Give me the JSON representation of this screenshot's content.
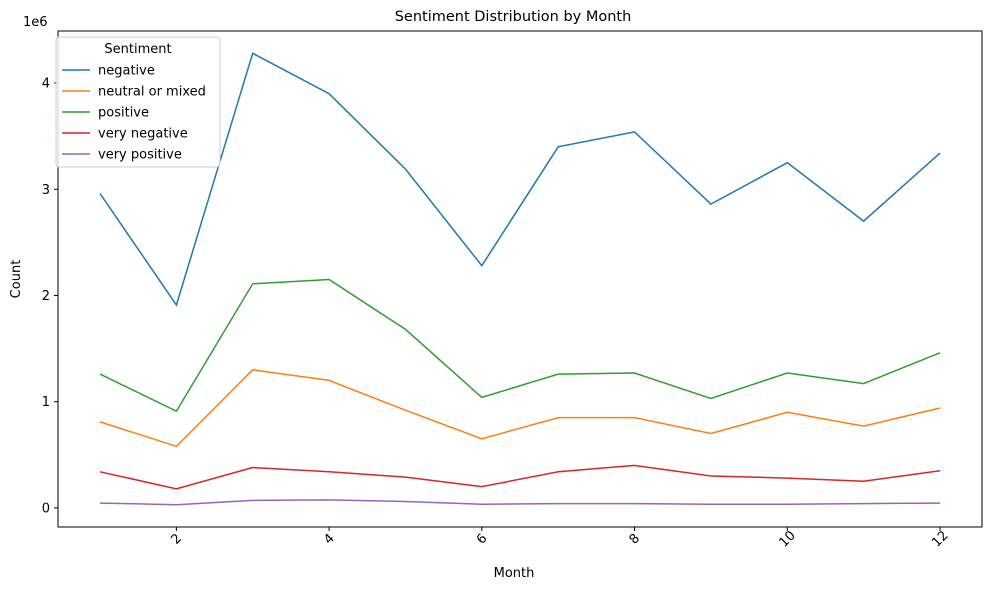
{
  "chart_data": {
    "type": "line",
    "title": "Sentiment Distribution by Month",
    "xlabel": "Month",
    "ylabel": "Count",
    "y_scale_label": "1e6",
    "x": [
      1,
      2,
      3,
      4,
      5,
      6,
      7,
      8,
      9,
      10,
      11,
      12
    ],
    "x_ticks": [
      2,
      4,
      6,
      8,
      10,
      12
    ],
    "y_ticks": [
      0,
      1,
      2,
      3,
      4
    ],
    "xlim": [
      0.45,
      12.55
    ],
    "ylim": [
      -0.18,
      4.49
    ],
    "y_unit_multiplier": 1000000,
    "grid": false,
    "legend": {
      "title": "Sentiment",
      "placement": "top-left"
    },
    "series": [
      {
        "name": "negative",
        "color": "#1f77b4",
        "values": [
          2.96,
          1.91,
          4.28,
          3.9,
          3.19,
          2.28,
          3.4,
          3.54,
          2.86,
          3.25,
          2.7,
          3.34
        ]
      },
      {
        "name": "neutral or mixed",
        "color": "#ff7f0e",
        "values": [
          0.81,
          0.58,
          1.3,
          1.2,
          0.92,
          0.65,
          0.85,
          0.85,
          0.7,
          0.9,
          0.77,
          0.94
        ]
      },
      {
        "name": "positive",
        "color": "#2ca02c",
        "values": [
          1.26,
          0.91,
          2.11,
          2.15,
          1.68,
          1.04,
          1.26,
          1.27,
          1.03,
          1.27,
          1.17,
          1.46
        ]
      },
      {
        "name": "very negative",
        "color": "#d62728",
        "values": [
          0.34,
          0.18,
          0.38,
          0.34,
          0.29,
          0.2,
          0.34,
          0.4,
          0.3,
          0.28,
          0.25,
          0.35
        ]
      },
      {
        "name": "very positive",
        "color": "#9467bd",
        "values": [
          0.045,
          0.03,
          0.07,
          0.075,
          0.06,
          0.035,
          0.04,
          0.04,
          0.035,
          0.035,
          0.04,
          0.045
        ]
      }
    ]
  }
}
